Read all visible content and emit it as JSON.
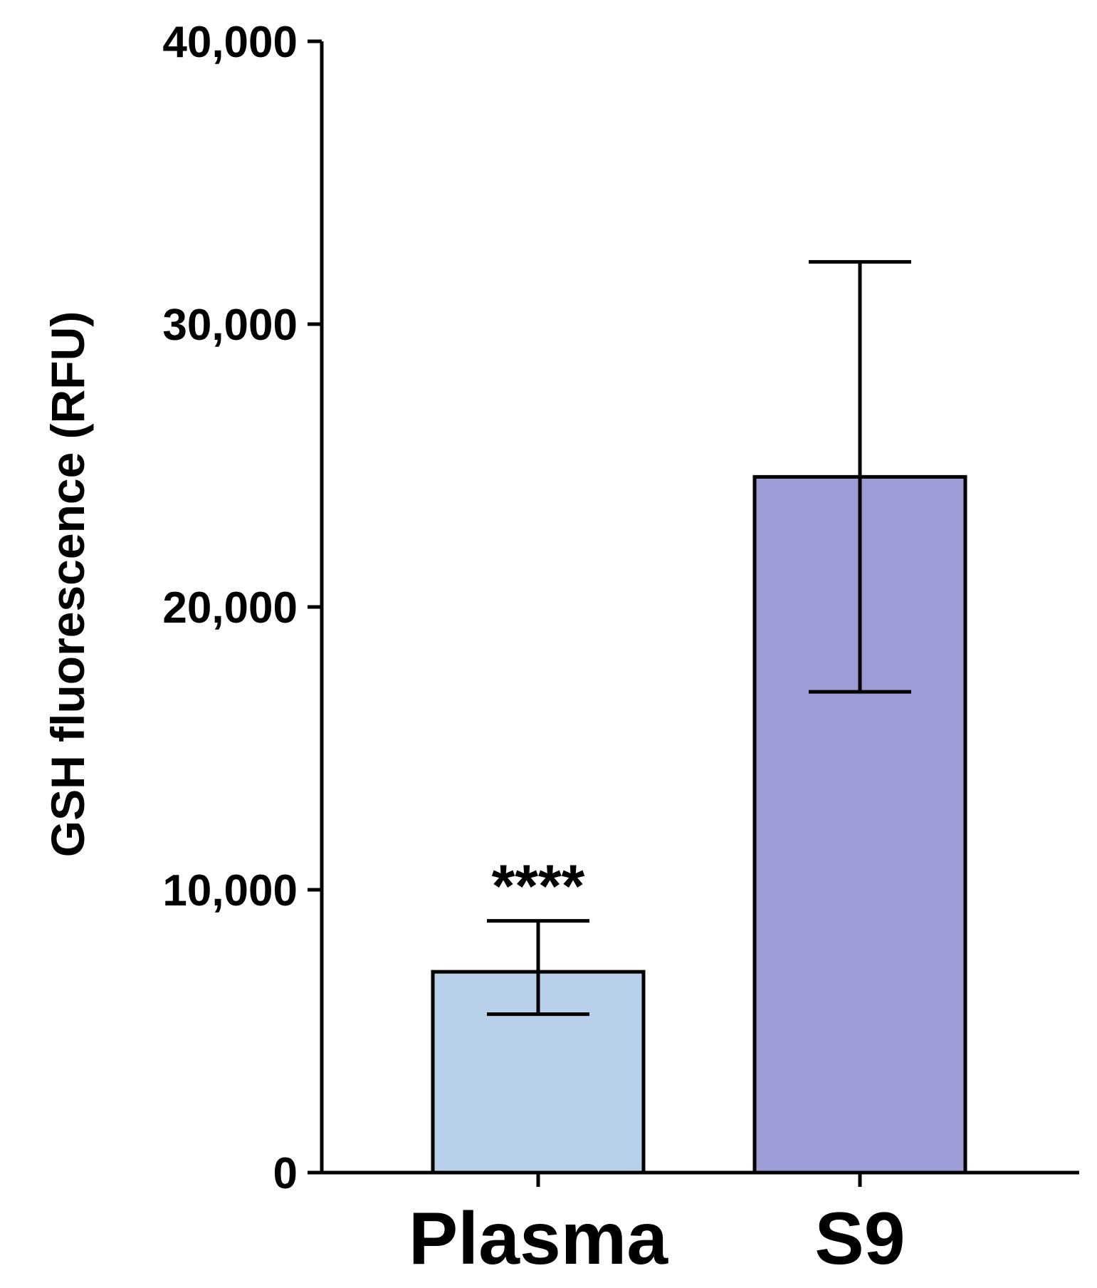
{
  "chart_data": {
    "type": "bar",
    "title": "",
    "xlabel": "",
    "ylabel": "GSH fluorescence (RFU)",
    "ylim": [
      0,
      40000
    ],
    "yticks": [
      0,
      10000,
      20000,
      30000,
      40000
    ],
    "ytick_labels": [
      "0",
      "10,000",
      "20,000",
      "30,000",
      "40,000"
    ],
    "grid": false,
    "legend": "none",
    "categories": [
      "Plasma",
      "S9"
    ],
    "values": [
      7100,
      24600
    ],
    "error_upper": [
      8900,
      32200
    ],
    "error_lower": [
      5600,
      17000
    ],
    "annotations": [
      {
        "category": "Plasma",
        "text": "****"
      }
    ],
    "colors": {
      "Plasma": "#b8d0ea",
      "S9": "#9c9dd6",
      "outline": "#000000"
    }
  }
}
